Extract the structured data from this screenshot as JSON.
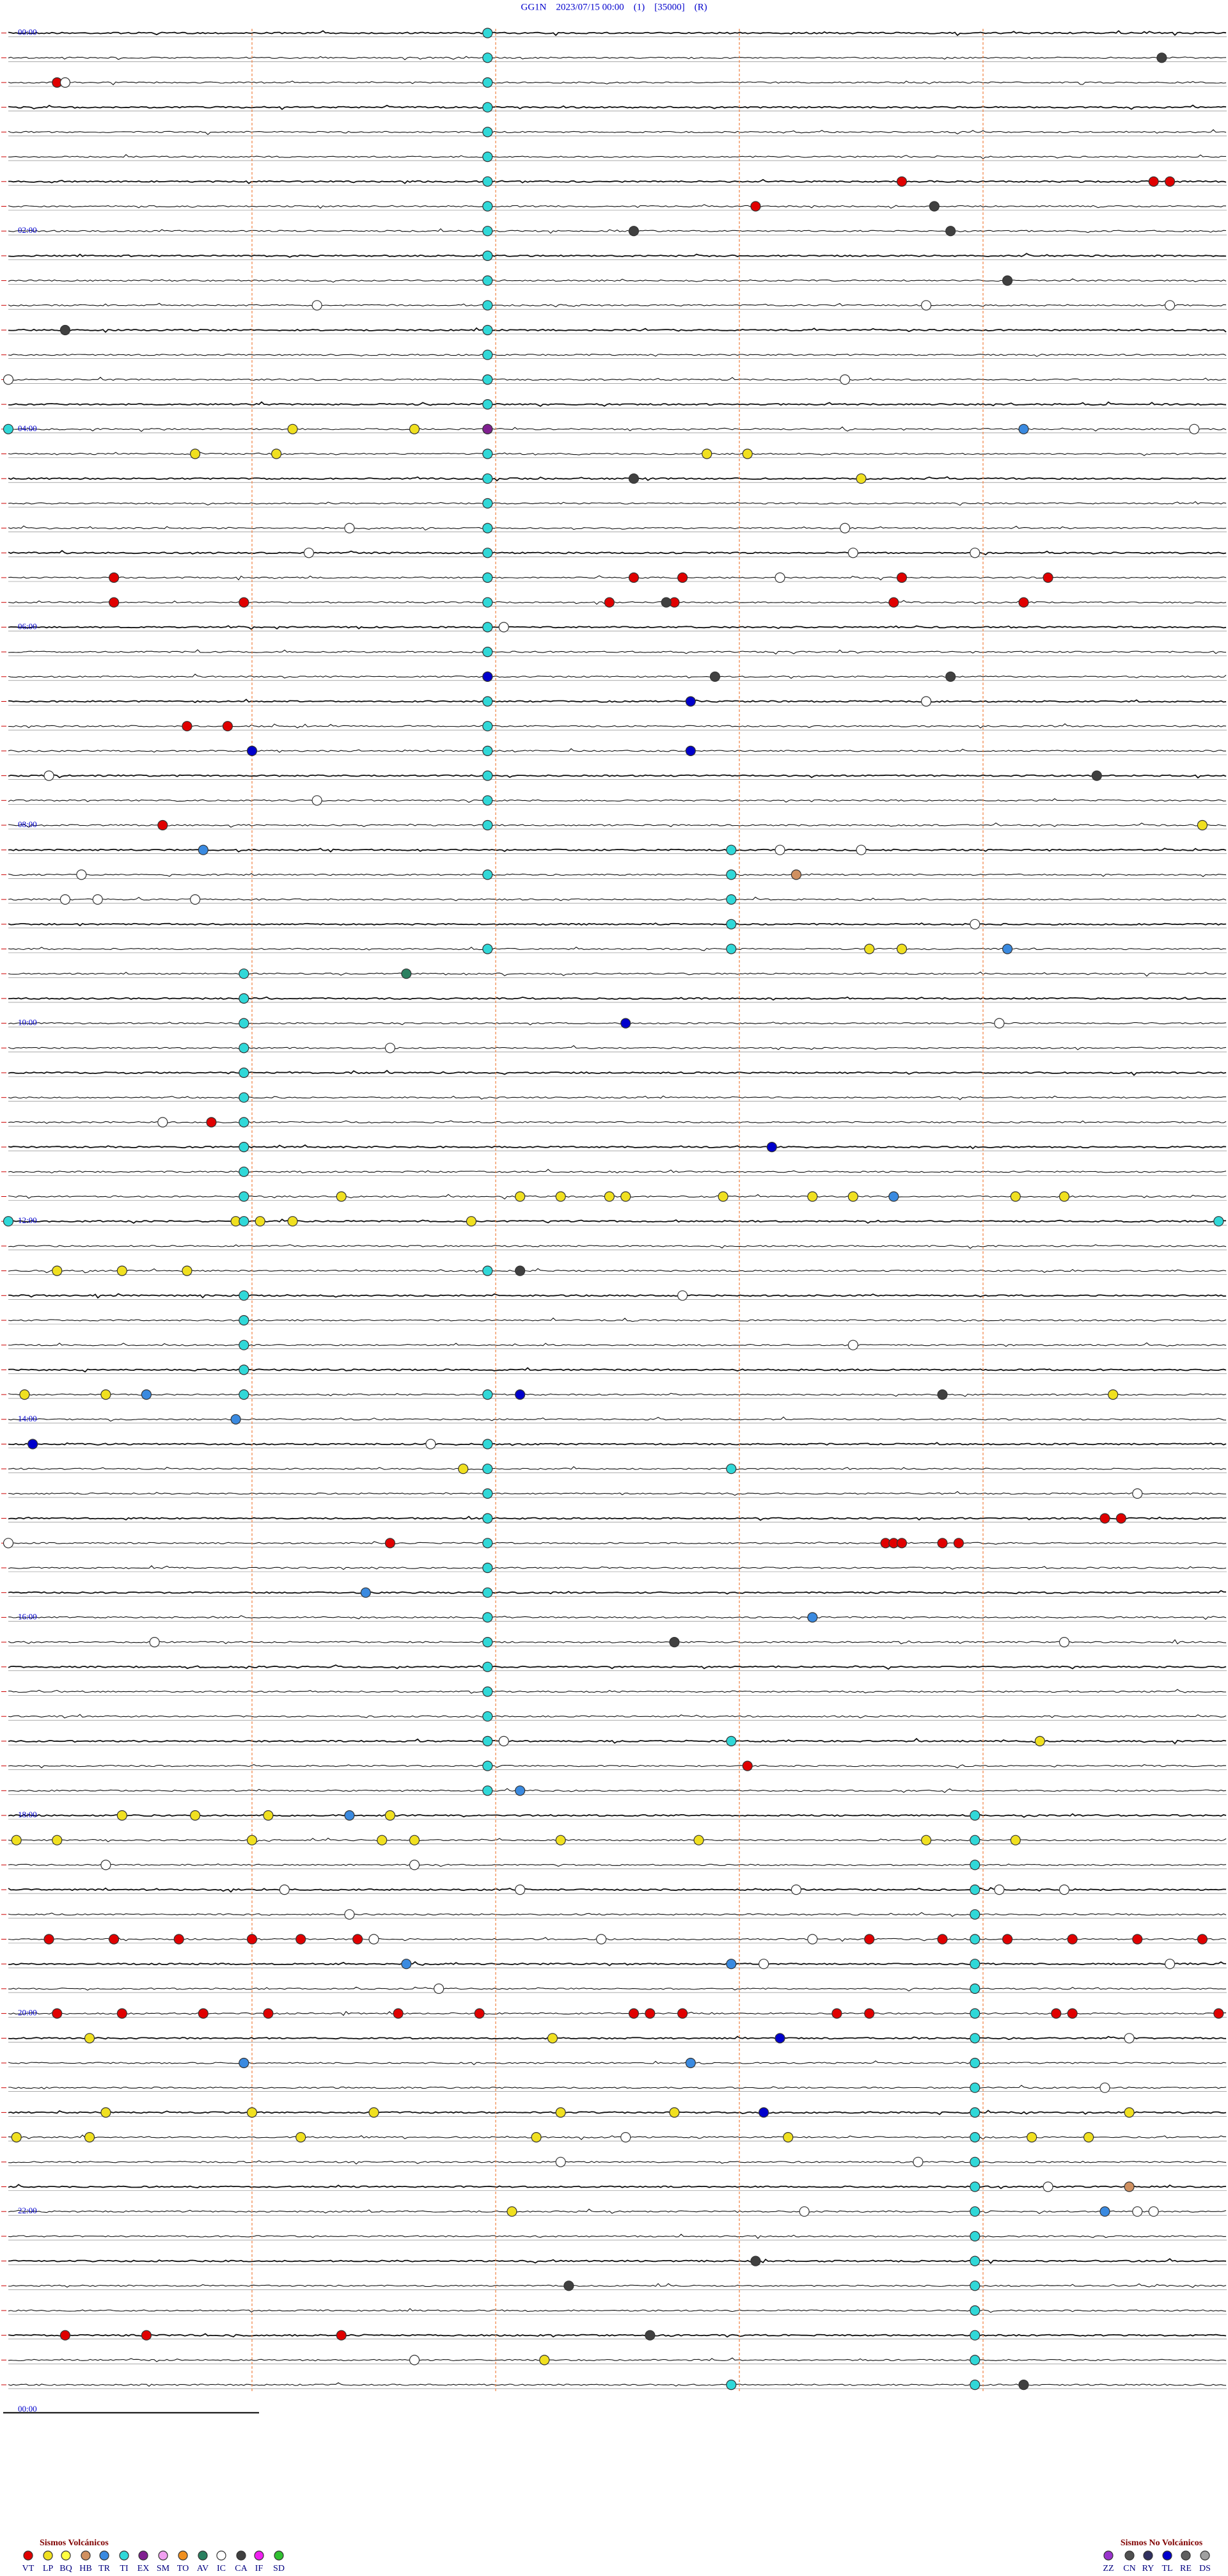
{
  "chart_data": {
    "type": "helicorder",
    "title": "GG1N    2023/07/15 00:00    (1)    [35000]    (R)",
    "xlim": [
      0,
      15
    ],
    "xticks": [
      3,
      6,
      9,
      12
    ],
    "ylim": [
      0,
      1440
    ],
    "hour_labels": [
      "00:00",
      "02:00",
      "04:00",
      "06:00",
      "08:00",
      "10:00",
      "12:00",
      "14:00",
      "16:00",
      "18:00",
      "20:00",
      "22:00",
      "00:00"
    ],
    "groups": [
      {
        "title": "Sismos Volcánicos",
        "series": [
          {
            "name": "VT",
            "color": "#e00000",
            "values": [
              30.6,
              101,
              104.1,
              104.3,
              114.2,
              331.3,
              346.3,
              347.9,
              337.7,
              338.3,
              353.2,
              352.4,
              341,
              342.8,
              357.5,
              355.9,
              422.2,
              422.7,
              481.9,
              662.5,
              919.7,
              925.8,
              925.9,
              926.0,
              926.5,
              926.7,
              913.5,
              913.7,
              1059.1,
              1155.5,
              1156.3,
              1157.1,
              1158.0,
              1158.6,
              1159.3,
              1165.6,
              1166.5,
              1167.3,
              1168.1,
              1168.9,
              1169.7,
              1200.6,
              1201.4,
              1202.4,
              1203.2,
              1204.8,
              1205.8,
              1207.7,
              1207.9,
              1208.3,
              1210.2,
              1210.6,
              1212.9,
              1213.1,
              1214.9,
              1395.7,
              1396.7,
              1399.1
            ]
          },
          {
            "name": "LP",
            "color": "#f0e020",
            "values": [
              243.5,
              258.3,
              257.3,
              245.0,
              263.6,
              264.1,
              280.5,
              494.7,
              565.6,
              566,
              709.1,
              711.3,
              711.8,
              712.4,
              712.6,
              713.8,
              714.9,
              715.4,
              717.4,
              718.0,
              723.1,
              722.8,
              723.5,
              725.7,
              750.6,
              751.4,
              752.2,
              825.2,
              826.2,
              838.6,
              875.6,
              1047.7,
              1081.4,
              1082.3,
              1083.2,
              1084.7,
              1095.1,
              1099.6,
              1100,
              1101.8,
              1103.5,
              1106.3,
              1107.4,
              1095.6,
              1098.0,
              1216,
              1221.7,
              1261.2,
              1263,
              1264.5,
              1266.8,
              1268.2,
              1273.8,
              1275.1,
              1276.0,
              1278.6,
              1281.5,
              1284.6,
              1287.6,
              1288.3,
              1326.2,
              1416.6
            ]
          },
          {
            "name": "BQ",
            "color": "#ffff40",
            "values": []
          },
          {
            "name": "HB",
            "color": "#d09060",
            "values": [
              519.7,
              1318.8
            ]
          },
          {
            "name": "TR",
            "color": "#3a8ae0",
            "values": [
              252.5,
              497.4,
              567.3,
              715.9,
              826.7,
              842.8,
              949.4,
              969.9,
              1071.3,
              1084.2,
              1174.9,
              1178.9,
              1232.9,
              1238.4,
              1333.5
            ]
          },
          {
            "name": "TI",
            "color": "#30d8d8",
            "values": [
              5.9,
              20.9,
              35.9,
              50.9,
              65.9,
              80.9,
              95.9,
              110.9,
              125.9,
              140.9,
              155.9,
              170.9,
              185.9,
              200.9,
              215.9,
              230.9,
              245.9,
              260.9,
              275.9,
              290.9,
              305.9,
              320.9,
              335.9,
              350.9,
              365.9,
              380.9,
              395.9,
              410.9,
              425.9,
              440.9,
              455.9,
              470.9,
              485.9,
              503.9,
              518.9,
              533.9,
              548.9,
              563.9,
              572.9,
              587.9,
              602.9,
              617.9,
              632.9,
              647.9,
              662.9,
              677.9,
              692.9,
              707.9,
              722.9,
              767.9,
              782.9,
              797.9,
              812.9,
              827.9,
              860.9,
              875.9,
              890.9,
              905.9,
              920.9,
              935.9,
              950.9,
              965.9,
              980.9,
              995.9,
              1010.9,
              1025.9,
              1040.9,
              1055.9,
              1070.9,
              1091.9,
              1106.9,
              1121.9,
              1136.9,
              1151.9,
              1166.9,
              1181.9,
              1196.9,
              1211.9,
              1226.9,
              1241.9,
              1256.9,
              1271.9,
              1286.9,
              1301.9,
              1316.9,
              1331.9,
              1346.9,
              1361.9,
              1376.9,
              1391.9,
              1406.9,
              1421.9,
              1436.9,
              240,
              515.9,
              560.9,
              720,
              734.9,
              755.9,
              830.9,
              878.9,
              1043.9,
              1433.9
            ]
          },
          {
            "name": "EX",
            "color": "#802090",
            "values": [
              245.9
            ]
          },
          {
            "name": "SM",
            "color": "#f0a0f0",
            "values": []
          },
          {
            "name": "TO",
            "color": "#f09020",
            "values": []
          },
          {
            "name": "AV",
            "color": "#2a8060",
            "values": [
              574.9
            ]
          },
          {
            "name": "IC",
            "color": "#ffffff",
            "values": [
              30.7,
              168.8,
              176.3,
              179.3,
              220.3,
              210.0,
              254.6,
              304.2,
              310.3,
              318.7,
              325.4,
              326.9,
              339.5,
              366.1,
              416.3,
              450.5,
              468.8,
              504.5,
              505.5,
              510.9,
              525.7,
              526.1,
              527.3,
              551.9,
              612.2,
              619.7,
              661.9,
              773.3,
              805.4,
              860.2,
              898.9,
              915.0,
              976.8,
              988,
              1041.1,
              1111.2,
              1115,
              1131.3,
              1134.7,
              1128.4,
              1138,
              1137.2,
              1144.2,
              1164.9,
              1159.5,
              1162.3,
              1179.3,
              1184.3,
              1190.3,
              1228.8,
              1258.5,
              1282.6,
              1301.2,
              1317.8,
              1296.8,
              1329.8,
              1333.9,
              1334.1,
              1415
            ]
          },
          {
            "name": "CA",
            "color": "#404040",
            "values": [
              29.2,
              116.4,
              131.6,
              127.7,
              162.3,
              180.7,
              277.7,
              353.1,
              398.7,
              401.6,
              463.4,
              756.3,
              836.5,
              983.2,
              1371.9,
              1359.2,
              1402.9,
              1437.5
            ]
          },
          {
            "name": "IF",
            "color": "#f020f0",
            "values": []
          },
          {
            "name": "SD",
            "color": "#30c030",
            "values": []
          }
        ]
      },
      {
        "title": "Sismos No Volcánicos",
        "series": [
          {
            "name": "ZZ",
            "color": "#9933cc",
            "values": []
          },
          {
            "name": "CN",
            "color": "#505050",
            "values": []
          },
          {
            "name": "RY",
            "color": "#303060",
            "values": []
          },
          {
            "name": "TL",
            "color": "#0000cc",
            "values": [
              395.9,
              413.4,
              443.4,
              438,
              607.6,
              684.4,
              831.3,
              855.3,
              1224.5,
              1269.3
            ]
          },
          {
            "name": "RE",
            "color": "#606060",
            "values": []
          },
          {
            "name": "DS",
            "color": "#a0a0a0",
            "values": []
          }
        ]
      }
    ]
  }
}
